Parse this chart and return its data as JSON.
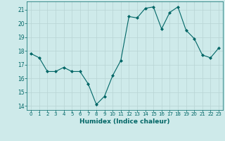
{
  "x": [
    0,
    1,
    2,
    3,
    4,
    5,
    6,
    7,
    8,
    9,
    10,
    11,
    12,
    13,
    14,
    15,
    16,
    17,
    18,
    19,
    20,
    21,
    22,
    23
  ],
  "y": [
    17.8,
    17.5,
    16.5,
    16.5,
    16.8,
    16.5,
    16.5,
    15.6,
    14.1,
    14.7,
    16.2,
    17.3,
    20.5,
    20.4,
    21.1,
    21.2,
    19.6,
    20.8,
    21.2,
    19.5,
    18.9,
    17.7,
    17.5,
    18.2
  ],
  "xlabel": "Humidex (Indice chaleur)",
  "line_color": "#006666",
  "marker": "D",
  "marker_size": 2,
  "bg_color": "#ceeaea",
  "grid_color": "#b8d4d4",
  "ylim": [
    13.7,
    21.6
  ],
  "yticks": [
    14,
    15,
    16,
    17,
    18,
    19,
    20,
    21
  ],
  "xlim": [
    -0.5,
    23.5
  ],
  "xticks": [
    0,
    1,
    2,
    3,
    4,
    5,
    6,
    7,
    8,
    9,
    10,
    11,
    12,
    13,
    14,
    15,
    16,
    17,
    18,
    19,
    20,
    21,
    22,
    23
  ]
}
